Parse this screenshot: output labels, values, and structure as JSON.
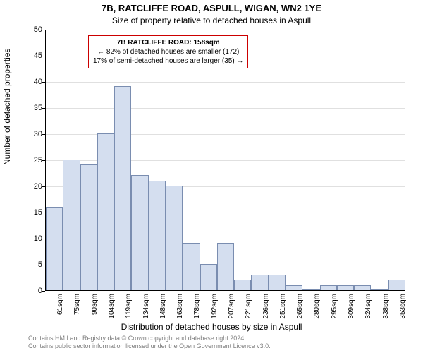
{
  "chart": {
    "type": "histogram",
    "title_main": "7B, RATCLIFFE ROAD, ASPULL, WIGAN, WN2 1YE",
    "title_sub": "Size of property relative to detached houses in Aspull",
    "y_axis_label": "Number of detached properties",
    "x_axis_label": "Distribution of detached houses by size in Aspull",
    "title_fontsize": 13,
    "subtitle_fontsize": 12,
    "axis_label_fontsize": 12,
    "tick_fontsize": 11,
    "background_color": "#ffffff",
    "grid_color": "#e0e0e0",
    "axis_color": "#000000",
    "bar_fill": "#d4deef",
    "bar_stroke": "#7a8db0",
    "marker_color": "#cc0000",
    "ylim": [
      0,
      50
    ],
    "ytick_step": 5,
    "yticks": [
      0,
      5,
      10,
      15,
      20,
      25,
      30,
      35,
      40,
      45,
      50
    ],
    "x_categories": [
      "61sqm",
      "75sqm",
      "90sqm",
      "104sqm",
      "119sqm",
      "134sqm",
      "148sqm",
      "163sqm",
      "178sqm",
      "192sqm",
      "207sqm",
      "221sqm",
      "236sqm",
      "251sqm",
      "265sqm",
      "280sqm",
      "295sqm",
      "309sqm",
      "324sqm",
      "338sqm",
      "353sqm"
    ],
    "values": [
      16,
      25,
      24,
      30,
      39,
      22,
      21,
      20,
      9,
      5,
      9,
      2,
      3,
      3,
      1,
      0,
      1,
      1,
      1,
      0,
      2
    ],
    "marker_value_sqm": 158,
    "marker_x_start_sqm": 54,
    "callout": {
      "line1": "7B RATCLIFFE ROAD: 158sqm",
      "line2": "← 82% of detached houses are smaller (172)",
      "line3": "17% of semi-detached houses are larger (35) →"
    },
    "footnote_line1": "Contains HM Land Registry data © Crown copyright and database right 2024.",
    "footnote_line2": "Contains public sector information licensed under the Open Government Licence v3.0."
  }
}
